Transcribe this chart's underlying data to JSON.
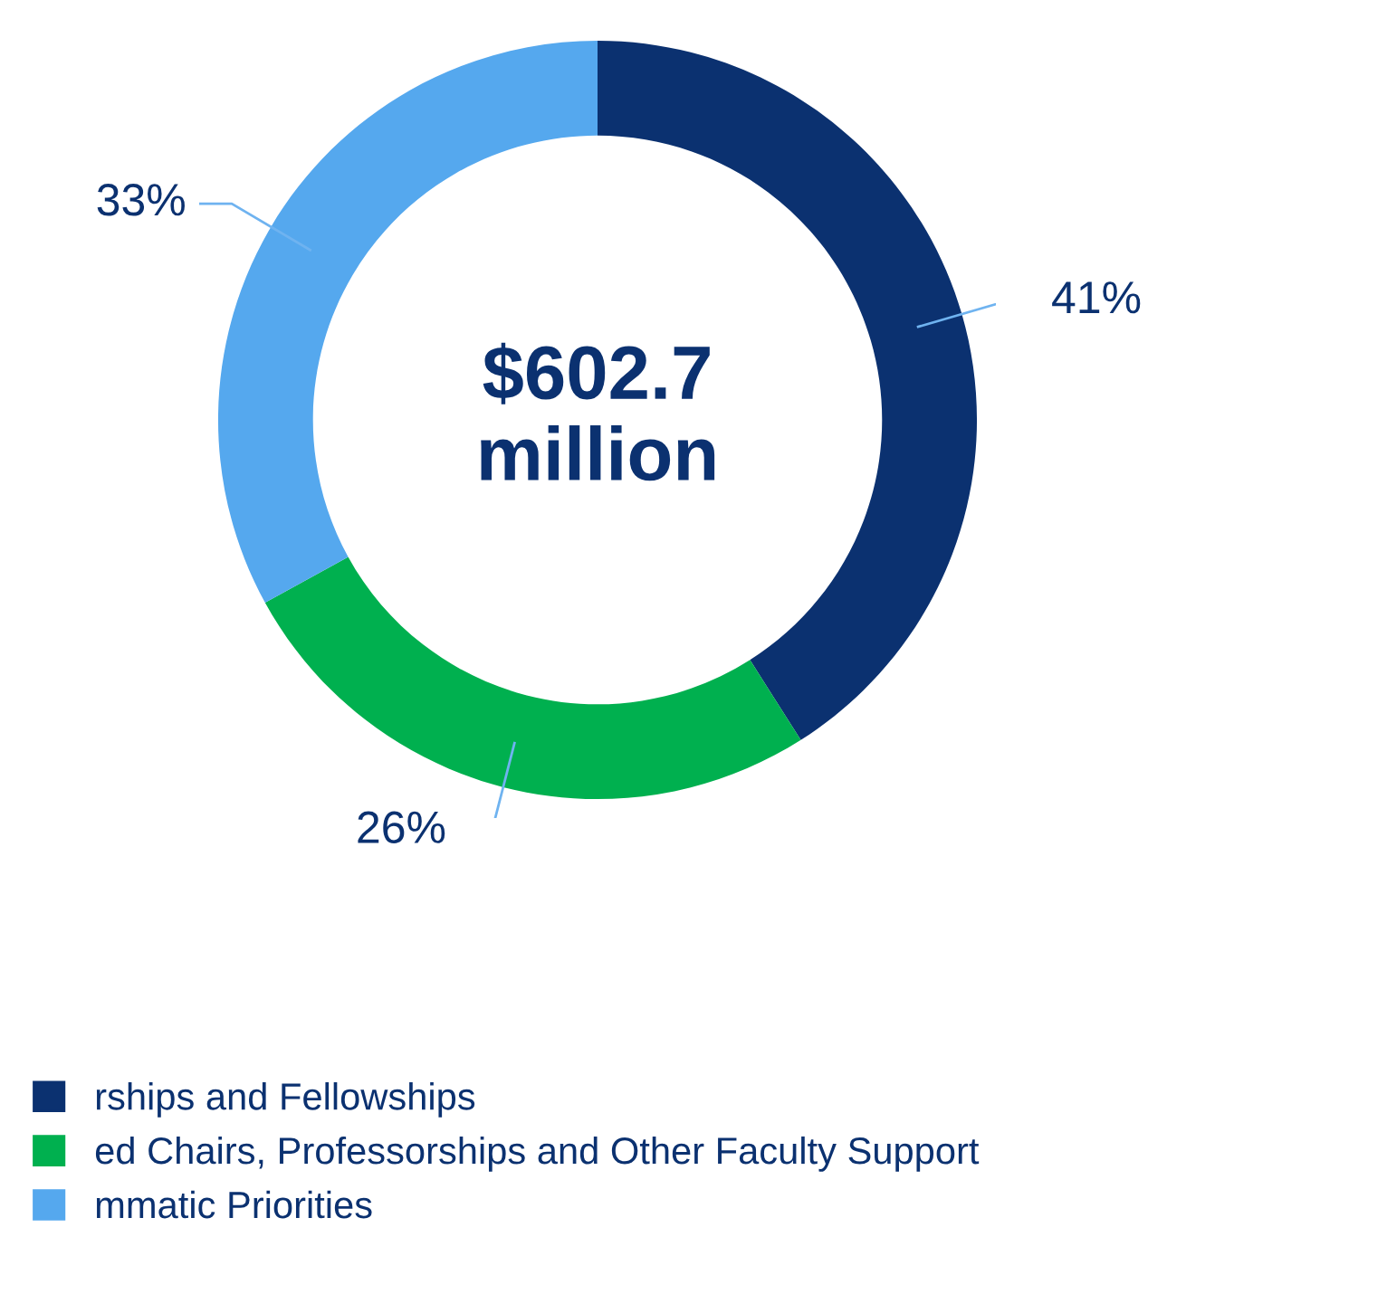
{
  "chart_data": {
    "type": "donut",
    "categories": [
      "rships and Fellowships",
      "ed Chairs, Professorships and Other Faculty Support",
      "mmatic Priorities"
    ],
    "values": [
      41,
      26,
      33
    ],
    "colors": [
      "#0b3170",
      "#00b04f",
      "#55a8ee"
    ],
    "value_labels": [
      "41%",
      "26%",
      "33%"
    ],
    "annotations": [
      "$602.7\nmillion"
    ],
    "legend": "bottom"
  }
}
